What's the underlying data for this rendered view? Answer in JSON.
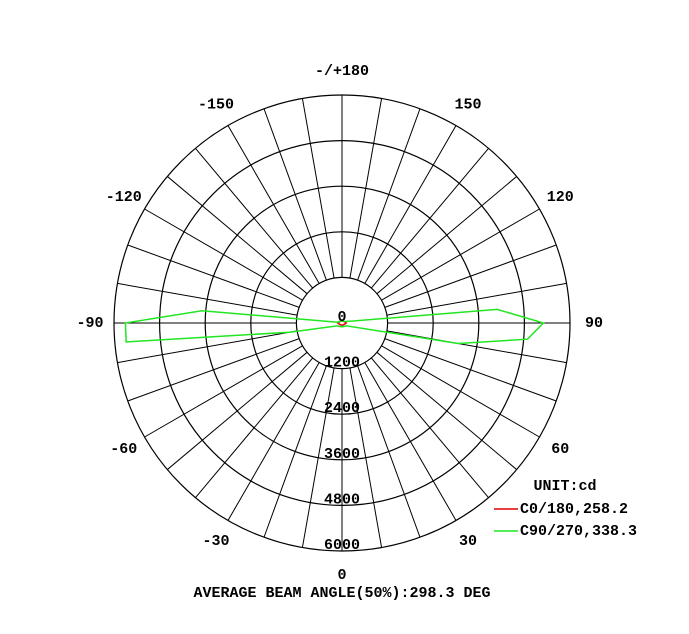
{
  "chart_data": {
    "type": "polar",
    "x": [
      -180,
      -120,
      -100,
      -95,
      -90,
      -85,
      -80,
      -60,
      0,
      60,
      80,
      85,
      90,
      95,
      100,
      120,
      180
    ],
    "series": [
      {
        "name": "C0/180,258.2",
        "color": "#e00000",
        "values": [
          60,
          70,
          90,
          100,
          110,
          100,
          90,
          70,
          60,
          70,
          90,
          100,
          110,
          100,
          90,
          70,
          60
        ]
      },
      {
        "name": "C90/270,338.3",
        "color": "#22e622",
        "values": [
          60,
          80,
          120,
          3700,
          5700,
          5700,
          1400,
          150,
          100,
          150,
          3100,
          4900,
          5300,
          4100,
          300,
          80,
          60
        ]
      }
    ],
    "rlim": [
      0,
      6000
    ],
    "rticks": [
      0,
      1200,
      2400,
      3600,
      4800,
      6000
    ],
    "angle_ticks": [
      {
        "value": 180,
        "label": "-/+180"
      },
      -150,
      150,
      -120,
      120,
      -90,
      90,
      -60,
      60,
      -30,
      30,
      0
    ],
    "unit_label": "UNIT:cd",
    "footer": "AVERAGE BEAM ANGLE(50%):298.3 DEG"
  }
}
